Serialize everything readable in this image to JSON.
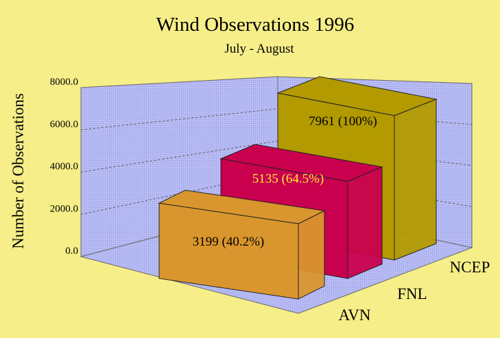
{
  "chart_data": {
    "type": "bar",
    "title": "Wind Observations 1996",
    "subtitle": "July - August",
    "ylabel": "Number of Observations",
    "xlabel": "",
    "ylim": [
      0,
      8000
    ],
    "yticks": [
      "0.0",
      "2000.0",
      "4000.0",
      "6000.0",
      "8000.0"
    ],
    "categories": [
      "AVN",
      "FNL",
      "NCEP"
    ],
    "values": [
      3199,
      5135,
      7961
    ],
    "data_labels": [
      "3199 (40.2%)",
      "5135 (64.5%)",
      "7961 (100%)"
    ],
    "bar_colors": [
      "#d9962e",
      "#c8004e",
      "#b29a00"
    ],
    "label_colors": [
      "#000000",
      "#ffee33",
      "#000000"
    ],
    "wall_color": "#b8bcf4",
    "grid": true,
    "projection": "3d"
  }
}
